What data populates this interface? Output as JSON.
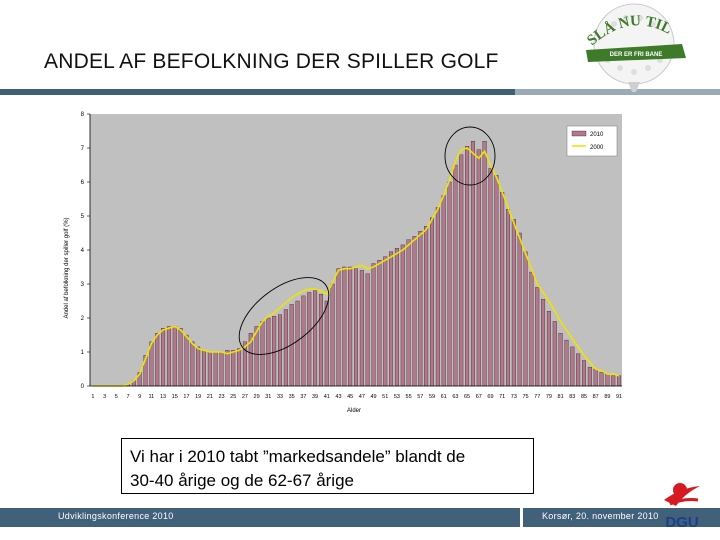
{
  "slide": {
    "title": "ANDEL AF BEFOLKNING DER SPILLER GOLF",
    "callout_line1": "Vi har i 2010 tabt ”markedsandele” blandt de",
    "callout_line2": "30-40 årige og de 62-67 årige"
  },
  "logo": {
    "arc_text": "SLÅ NU TIL",
    "banner_text": "DER ER FRI BANE",
    "icon": "golf-ball-logo"
  },
  "footer": {
    "left": "Udviklingskonference 2010",
    "right": "Korsør, 20. november 2010",
    "brand": "DGU",
    "colors": {
      "bar": "#41607a",
      "brand_red": "#d71920",
      "brand_blue": "#1c3f8a"
    }
  },
  "chart_data": {
    "type": "bar",
    "xlabel": "Alder",
    "ylabel": "Andel af befolkning der spiller golf (%)",
    "ylim": [
      0,
      8
    ],
    "yticks": [
      0,
      1,
      2,
      3,
      4,
      5,
      6,
      7,
      8
    ],
    "x": [
      1,
      2,
      3,
      4,
      5,
      6,
      7,
      8,
      9,
      10,
      11,
      12,
      13,
      14,
      15,
      16,
      17,
      18,
      19,
      20,
      21,
      22,
      23,
      24,
      25,
      26,
      27,
      28,
      29,
      30,
      31,
      32,
      33,
      34,
      35,
      36,
      37,
      38,
      39,
      40,
      41,
      42,
      43,
      44,
      45,
      46,
      47,
      48,
      49,
      50,
      51,
      52,
      53,
      54,
      55,
      56,
      57,
      58,
      59,
      60,
      61,
      62,
      63,
      64,
      65,
      66,
      67,
      68,
      69,
      70,
      71,
      72,
      73,
      74,
      75,
      76,
      77,
      78,
      79,
      80,
      81,
      82,
      83,
      84,
      85,
      86,
      87,
      88,
      89,
      90,
      91
    ],
    "xtick_labels": [
      "1",
      "3",
      "5",
      "7",
      "9",
      "11",
      "13",
      "15",
      "17",
      "19",
      "21",
      "23",
      "25",
      "27",
      "29",
      "31",
      "33",
      "35",
      "37",
      "39",
      "41",
      "43",
      "45",
      "47",
      "49",
      "51",
      "53",
      "55",
      "57",
      "59",
      "61",
      "63",
      "65",
      "67",
      "69",
      "71",
      "73",
      "75",
      "77",
      "79",
      "81",
      "83",
      "85",
      "87",
      "89",
      "91"
    ],
    "series": [
      {
        "name": "2010",
        "kind": "bar",
        "color": "#b4788c",
        "values": [
          0,
          0,
          0,
          0,
          0,
          0,
          0.05,
          0.15,
          0.4,
          0.9,
          1.3,
          1.55,
          1.7,
          1.75,
          1.75,
          1.7,
          1.5,
          1.3,
          1.15,
          1.05,
          1.0,
          1.0,
          1.0,
          1.05,
          1.05,
          1.1,
          1.3,
          1.55,
          1.75,
          1.9,
          2.0,
          2.05,
          2.1,
          2.25,
          2.4,
          2.5,
          2.65,
          2.75,
          2.8,
          2.7,
          2.5,
          3.0,
          3.45,
          3.5,
          3.5,
          3.45,
          3.4,
          3.3,
          3.6,
          3.7,
          3.8,
          3.95,
          4.05,
          4.15,
          4.3,
          4.4,
          4.55,
          4.7,
          4.95,
          5.25,
          5.6,
          6.0,
          6.5,
          6.8,
          7.05,
          7.2,
          6.95,
          7.2,
          6.4,
          6.2,
          5.7,
          5.2,
          4.9,
          4.5,
          3.95,
          3.35,
          2.9,
          2.55,
          2.2,
          1.9,
          1.55,
          1.35,
          1.15,
          0.95,
          0.75,
          0.55,
          0.5,
          0.4,
          0.35,
          0.3,
          0.3
        ]
      },
      {
        "name": "2000",
        "kind": "line",
        "color": "#f0e300",
        "values": [
          0,
          0,
          0,
          0,
          0,
          0,
          0.05,
          0.15,
          0.35,
          0.8,
          1.25,
          1.5,
          1.65,
          1.7,
          1.75,
          1.65,
          1.45,
          1.25,
          1.1,
          1.05,
          1.0,
          1.0,
          1.0,
          0.95,
          1.0,
          1.05,
          1.15,
          1.3,
          1.6,
          1.9,
          2.05,
          2.15,
          2.3,
          2.45,
          2.6,
          2.7,
          2.8,
          2.85,
          2.85,
          2.8,
          2.7,
          3.05,
          3.4,
          3.45,
          3.45,
          3.5,
          3.55,
          3.45,
          3.5,
          3.6,
          3.7,
          3.8,
          3.9,
          4.0,
          4.15,
          4.3,
          4.45,
          4.6,
          4.9,
          5.2,
          5.6,
          6.05,
          6.6,
          6.95,
          7.0,
          6.85,
          6.7,
          6.9,
          6.5,
          6.15,
          5.7,
          5.25,
          4.8,
          4.35,
          3.9,
          3.45,
          3.0,
          2.75,
          2.5,
          2.2,
          1.9,
          1.65,
          1.4,
          1.15,
          0.9,
          0.7,
          0.5,
          0.45,
          0.35,
          0.35,
          0.3
        ]
      }
    ],
    "legend": {
      "position": "top-right"
    },
    "plot_background": "#c0c0c0",
    "grid": false,
    "annotations": [
      {
        "type": "ellipse",
        "description": "circle around ages 29-41"
      },
      {
        "type": "ellipse",
        "description": "circle around ages 62-67"
      }
    ]
  }
}
